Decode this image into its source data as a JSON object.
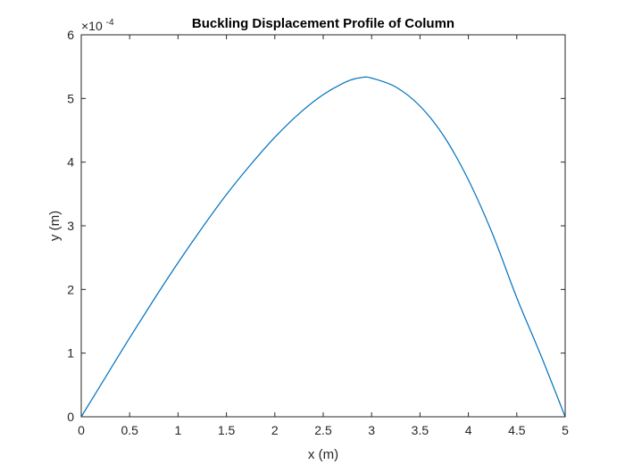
{
  "chart_data": {
    "type": "line",
    "title": "Buckling Displacement Profile of Column",
    "xlabel": "x (m)",
    "ylabel": "y (m)",
    "xlim": [
      0,
      5
    ],
    "ylim": [
      0,
      6
    ],
    "y_exponent_label": {
      "base": "×10",
      "exponent": "-4"
    },
    "x_ticks": [
      "0",
      "0.5",
      "1",
      "1.5",
      "2",
      "2.5",
      "3",
      "3.5",
      "4",
      "4.5",
      "5"
    ],
    "y_ticks": [
      "0",
      "1",
      "2",
      "3",
      "4",
      "5",
      "6"
    ],
    "grid": false,
    "series": [
      {
        "color": "#0072BD",
        "x": [
          0,
          0.25,
          0.5,
          0.75,
          1.0,
          1.25,
          1.5,
          1.75,
          2.0,
          2.25,
          2.5,
          2.75,
          2.9,
          3.0,
          3.25,
          3.5,
          3.75,
          4.0,
          4.25,
          4.5,
          4.75,
          5.0
        ],
        "y": [
          0,
          0.62,
          1.24,
          1.84,
          2.42,
          2.97,
          3.49,
          3.96,
          4.39,
          4.76,
          5.06,
          5.27,
          5.33,
          5.32,
          5.18,
          4.88,
          4.4,
          3.72,
          2.87,
          1.87,
          0.96,
          0
        ]
      }
    ]
  }
}
